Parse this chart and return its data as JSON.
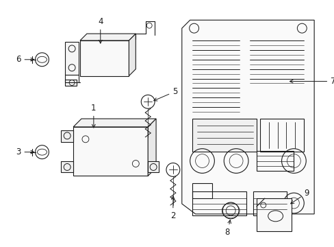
{
  "bg_color": "#ffffff",
  "line_color": "#1a1a1a",
  "figsize": [
    4.89,
    3.6
  ],
  "dpi": 100,
  "label_fontsize": 8.5,
  "arrow_lw": 0.7,
  "draw_lw": 0.8
}
